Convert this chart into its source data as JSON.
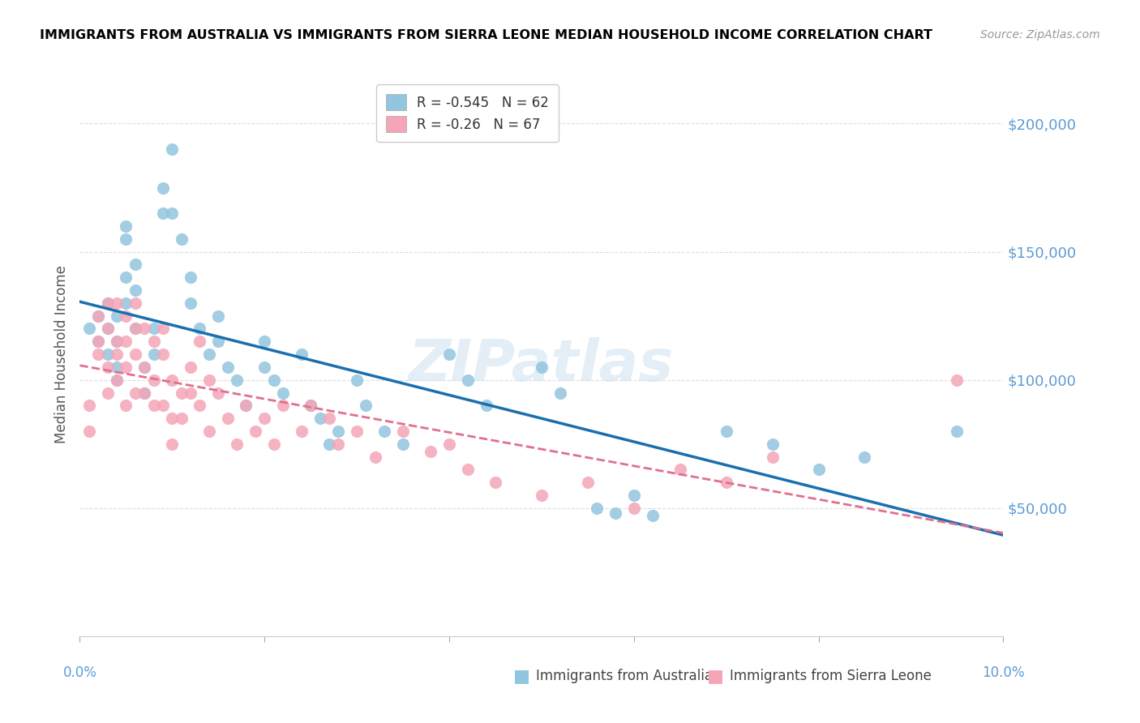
{
  "title": "IMMIGRANTS FROM AUSTRALIA VS IMMIGRANTS FROM SIERRA LEONE MEDIAN HOUSEHOLD INCOME CORRELATION CHART",
  "source": "Source: ZipAtlas.com",
  "ylabel": "Median Household Income",
  "australia_R": -0.545,
  "australia_N": 62,
  "sierraleone_R": -0.26,
  "sierraleone_N": 67,
  "australia_color": "#92c5de",
  "sierraleone_color": "#f4a6b8",
  "australia_line_color": "#1a6faf",
  "sierraleone_line_color": "#e07090",
  "watermark": "ZIPatlas",
  "ytick_labels": [
    "$50,000",
    "$100,000",
    "$150,000",
    "$200,000"
  ],
  "ytick_values": [
    50000,
    100000,
    150000,
    200000
  ],
  "xlim": [
    0,
    0.1
  ],
  "ylim": [
    0,
    220000
  ],
  "australia_x": [
    0.001,
    0.002,
    0.002,
    0.003,
    0.003,
    0.003,
    0.004,
    0.004,
    0.004,
    0.004,
    0.005,
    0.005,
    0.005,
    0.005,
    0.006,
    0.006,
    0.006,
    0.007,
    0.007,
    0.008,
    0.008,
    0.009,
    0.009,
    0.01,
    0.01,
    0.011,
    0.012,
    0.012,
    0.013,
    0.014,
    0.015,
    0.015,
    0.016,
    0.017,
    0.018,
    0.02,
    0.02,
    0.021,
    0.022,
    0.024,
    0.025,
    0.026,
    0.027,
    0.028,
    0.03,
    0.031,
    0.033,
    0.035,
    0.04,
    0.042,
    0.044,
    0.05,
    0.052,
    0.056,
    0.058,
    0.06,
    0.062,
    0.07,
    0.075,
    0.08,
    0.085,
    0.095
  ],
  "australia_y": [
    120000,
    125000,
    115000,
    130000,
    120000,
    110000,
    125000,
    115000,
    105000,
    100000,
    160000,
    155000,
    140000,
    130000,
    145000,
    135000,
    120000,
    105000,
    95000,
    120000,
    110000,
    175000,
    165000,
    190000,
    165000,
    155000,
    140000,
    130000,
    120000,
    110000,
    125000,
    115000,
    105000,
    100000,
    90000,
    115000,
    105000,
    100000,
    95000,
    110000,
    90000,
    85000,
    75000,
    80000,
    100000,
    90000,
    80000,
    75000,
    110000,
    100000,
    90000,
    105000,
    95000,
    50000,
    48000,
    55000,
    47000,
    80000,
    75000,
    65000,
    70000,
    80000
  ],
  "sierraleone_x": [
    0.001,
    0.001,
    0.002,
    0.002,
    0.002,
    0.003,
    0.003,
    0.003,
    0.003,
    0.004,
    0.004,
    0.004,
    0.004,
    0.005,
    0.005,
    0.005,
    0.005,
    0.006,
    0.006,
    0.006,
    0.006,
    0.007,
    0.007,
    0.007,
    0.008,
    0.008,
    0.008,
    0.009,
    0.009,
    0.009,
    0.01,
    0.01,
    0.01,
    0.011,
    0.011,
    0.012,
    0.012,
    0.013,
    0.013,
    0.014,
    0.014,
    0.015,
    0.016,
    0.017,
    0.018,
    0.019,
    0.02,
    0.021,
    0.022,
    0.024,
    0.025,
    0.027,
    0.028,
    0.03,
    0.032,
    0.035,
    0.038,
    0.04,
    0.042,
    0.045,
    0.05,
    0.055,
    0.06,
    0.065,
    0.07,
    0.075,
    0.095
  ],
  "sierraleone_y": [
    90000,
    80000,
    115000,
    125000,
    110000,
    120000,
    130000,
    105000,
    95000,
    115000,
    130000,
    110000,
    100000,
    125000,
    115000,
    105000,
    90000,
    130000,
    120000,
    110000,
    95000,
    120000,
    105000,
    95000,
    115000,
    100000,
    90000,
    120000,
    110000,
    90000,
    100000,
    85000,
    75000,
    95000,
    85000,
    105000,
    95000,
    115000,
    90000,
    80000,
    100000,
    95000,
    85000,
    75000,
    90000,
    80000,
    85000,
    75000,
    90000,
    80000,
    90000,
    85000,
    75000,
    80000,
    70000,
    80000,
    72000,
    75000,
    65000,
    60000,
    55000,
    60000,
    50000,
    65000,
    60000,
    70000,
    100000
  ]
}
